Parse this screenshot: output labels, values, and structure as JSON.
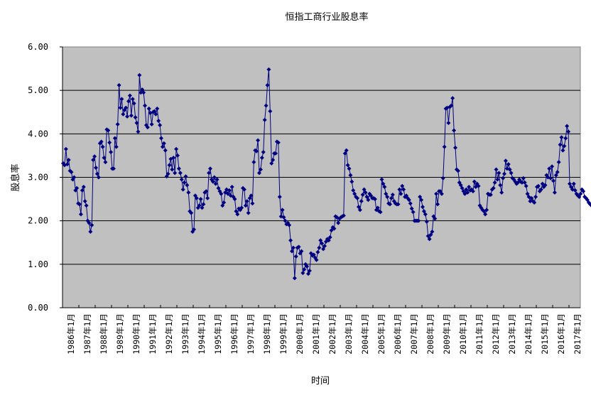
{
  "chart_data": {
    "type": "line",
    "title": "恒指工商行业股息率",
    "xlabel": "时间",
    "ylabel": "股息率",
    "ylim": [
      0,
      6
    ],
    "yticks": [
      "0.00",
      "1.00",
      "2.00",
      "3.00",
      "4.00",
      "5.00",
      "6.00"
    ],
    "grid": true,
    "legend": null,
    "marker": "diamond",
    "colors": {
      "line": "#000080",
      "plot_bg": "#c0c0c0",
      "grid": "#000000"
    },
    "x_tick_labels": [
      "1986年1月",
      "1987年1月",
      "1988年1月",
      "1989年1月",
      "1990年1月",
      "1991年1月",
      "1992年1月",
      "1993年1月",
      "1994年1月",
      "1995年1月",
      "1996年1月",
      "1997年1月",
      "1998年1月",
      "1999年1月",
      "2000年1月",
      "2001年1月",
      "2002年1月",
      "2003年1月",
      "2004年1月",
      "2005年1月",
      "2006年1月",
      "2007年1月",
      "2008年1月",
      "2009年1月",
      "2010年1月",
      "2011年1月",
      "2012年1月",
      "2013年1月",
      "2014年1月",
      "2015年1月",
      "2016年1月",
      "2017年1月"
    ],
    "x_start": "1986-01",
    "x_frequency": "monthly",
    "series": [
      {
        "name": "股息率",
        "values": [
          3.32,
          3.28,
          3.65,
          3.3,
          3.4,
          3.15,
          3.12,
          2.95,
          3.0,
          2.7,
          2.75,
          2.4,
          2.38,
          2.15,
          2.7,
          2.78,
          2.45,
          2.35,
          2.0,
          1.95,
          1.75,
          1.9,
          3.4,
          3.48,
          3.22,
          3.08,
          3.0,
          3.78,
          3.82,
          3.7,
          3.45,
          3.35,
          4.1,
          4.08,
          3.8,
          3.58,
          3.2,
          3.2,
          3.9,
          3.7,
          4.22,
          5.12,
          4.6,
          4.8,
          4.45,
          4.55,
          4.6,
          4.4,
          4.75,
          4.88,
          4.42,
          4.8,
          4.7,
          4.38,
          4.25,
          4.05,
          5.35,
          4.95,
          5.02,
          4.95,
          4.65,
          4.2,
          4.15,
          4.58,
          4.48,
          4.22,
          4.5,
          4.52,
          4.45,
          4.58,
          4.3,
          4.2,
          3.9,
          3.7,
          3.78,
          3.62,
          3.02,
          3.08,
          3.28,
          3.42,
          3.18,
          3.45,
          3.1,
          3.65,
          3.5,
          3.2,
          3.1,
          2.95,
          2.72,
          2.88,
          3.02,
          2.82,
          2.65,
          2.22,
          2.18,
          1.75,
          1.8,
          2.58,
          2.52,
          2.3,
          2.35,
          2.5,
          2.3,
          2.38,
          2.65,
          2.68,
          2.52,
          3.1,
          3.2,
          2.95,
          2.9,
          3.0,
          2.85,
          2.95,
          2.75,
          2.68,
          2.62,
          2.35,
          2.42,
          2.65,
          2.72,
          2.62,
          2.7,
          2.58,
          2.78,
          2.55,
          2.5,
          2.22,
          2.15,
          2.28,
          2.25,
          2.3,
          2.75,
          2.72,
          2.35,
          2.45,
          2.18,
          2.52,
          2.58,
          2.4,
          3.35,
          3.62,
          3.6,
          3.85,
          3.1,
          3.18,
          3.45,
          3.58,
          4.32,
          4.65,
          5.12,
          5.48,
          4.52,
          3.32,
          3.4,
          3.55,
          3.55,
          3.82,
          3.8,
          2.55,
          2.1,
          2.25,
          2.08,
          2.0,
          1.92,
          1.95,
          1.9,
          1.55,
          1.3,
          1.38,
          0.68,
          1.18,
          1.38,
          1.4,
          1.25,
          1.3,
          0.8,
          0.88,
          1.0,
          0.95,
          0.78,
          0.85,
          1.25,
          1.2,
          1.22,
          1.15,
          1.1,
          1.28,
          1.38,
          1.55,
          1.48,
          1.35,
          1.42,
          1.52,
          1.58,
          1.55,
          1.62,
          1.78,
          1.85,
          1.82,
          2.1,
          2.08,
          1.95,
          2.05,
          2.08,
          2.1,
          2.12,
          3.55,
          3.62,
          3.28,
          3.2,
          3.05,
          2.9,
          2.7,
          2.62,
          2.55,
          2.52,
          2.32,
          2.25,
          2.45,
          2.6,
          2.72,
          2.65,
          2.55,
          2.48,
          2.62,
          2.58,
          2.52,
          2.52,
          2.5,
          2.25,
          2.3,
          2.22,
          2.2,
          2.95,
          2.85,
          2.78,
          2.62,
          2.55,
          2.4,
          2.38,
          2.52,
          2.6,
          2.45,
          2.4,
          2.38,
          2.38,
          2.72,
          2.62,
          2.8,
          2.72,
          2.55,
          2.58,
          2.52,
          2.48,
          2.4,
          2.28,
          2.2,
          2.0,
          2.0,
          2.0,
          2.0,
          2.55,
          2.48,
          2.32,
          2.22,
          2.15,
          1.98,
          1.65,
          1.58,
          1.68,
          1.75,
          2.1,
          2.05,
          2.62,
          2.38,
          2.68,
          2.68,
          2.62,
          2.98,
          3.7,
          4.58,
          4.6,
          4.25,
          4.62,
          4.65,
          4.82,
          4.08,
          3.68,
          3.18,
          3.15,
          2.88,
          2.82,
          2.75,
          2.68,
          2.62,
          2.72,
          2.65,
          2.78,
          2.7,
          2.72,
          2.68,
          2.9,
          2.78,
          2.85,
          2.8,
          2.35,
          2.3,
          2.25,
          2.22,
          2.15,
          2.25,
          2.62,
          2.6,
          2.6,
          2.72,
          2.75,
          2.88,
          3.18,
          2.95,
          3.1,
          2.82,
          2.65,
          2.98,
          3.08,
          3.38,
          3.2,
          3.3,
          3.18,
          3.1,
          2.98,
          2.95,
          2.9,
          2.85,
          2.88,
          2.95,
          2.9,
          2.88,
          2.98,
          2.88,
          2.8,
          2.62,
          2.55,
          2.45,
          2.52,
          2.45,
          2.42,
          2.55,
          2.78,
          2.8,
          2.68,
          2.72,
          2.85,
          2.78,
          2.82,
          3.05,
          3.0,
          3.2,
          2.98,
          3.25,
          2.92,
          2.65,
          3.05,
          3.12,
          3.35,
          3.75,
          3.92,
          3.62,
          3.72,
          3.9,
          4.18,
          4.05,
          2.85,
          2.78,
          2.72,
          2.85,
          2.7,
          2.62,
          2.58,
          2.55,
          2.62,
          2.72,
          2.68,
          2.55,
          2.52,
          2.48,
          2.42,
          2.38,
          2.35,
          2.32
        ]
      }
    ]
  }
}
